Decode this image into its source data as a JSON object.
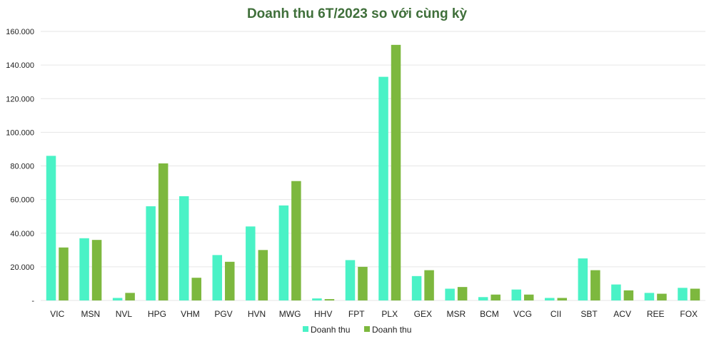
{
  "chart_data": {
    "type": "bar",
    "title": "Doanh thu 6T/2023 so với cùng kỳ",
    "xlabel": "",
    "ylabel": "",
    "ylim": [
      0,
      160000
    ],
    "yticks": [
      "-",
      "20.000",
      "40.000",
      "60.000",
      "80.000",
      "100.000",
      "120.000",
      "140.000",
      "160.000"
    ],
    "ytick_values": [
      0,
      20000,
      40000,
      60000,
      80000,
      100000,
      120000,
      140000,
      160000
    ],
    "grid": true,
    "legend_position": "bottom",
    "categories": [
      "VIC",
      "MSN",
      "NVL",
      "HPG",
      "VHM",
      "PGV",
      "HVN",
      "MWG",
      "HHV",
      "FPT",
      "PLX",
      "GEX",
      "MSR",
      "BCM",
      "VCG",
      "CII",
      "SBT",
      "ACV",
      "REE",
      "FOX"
    ],
    "series": [
      {
        "name": "Doanh thu",
        "color": "#4af2c6",
        "values": [
          86000,
          37000,
          1500,
          56000,
          62000,
          27000,
          44000,
          56500,
          1200,
          24000,
          133000,
          14500,
          7000,
          2000,
          6500,
          1500,
          25000,
          9500,
          4500,
          7500
        ]
      },
      {
        "name": "Doanh thu",
        "color": "#7db83e",
        "values": [
          31500,
          36000,
          4500,
          81500,
          13500,
          23000,
          30000,
          71000,
          800,
          20000,
          152000,
          18000,
          8000,
          3500,
          3500,
          1500,
          18000,
          6000,
          4000,
          7000
        ]
      }
    ]
  }
}
